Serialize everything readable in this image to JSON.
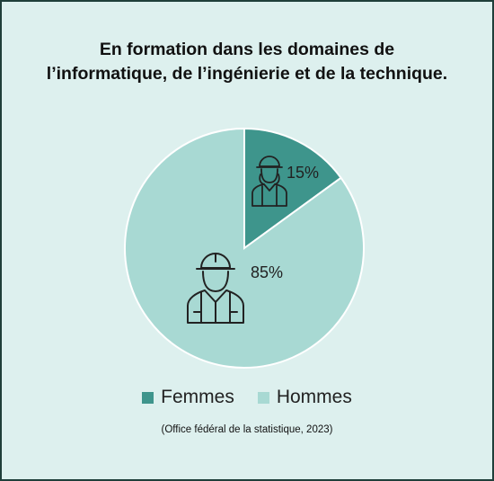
{
  "chart_data": {
    "type": "pie",
    "title": "En formation dans les domaines de l’informatique, de l’ingénierie et de la technique.",
    "slices": [
      {
        "name": "Femmes",
        "value": 15,
        "label": "15%",
        "color": "#3e958c",
        "icon": "female-worker-icon"
      },
      {
        "name": "Hommes",
        "value": 85,
        "label": "85%",
        "color": "#a8d9d3",
        "icon": "male-worker-icon"
      }
    ],
    "legend_position": "bottom",
    "source": "(Office fédéral de la statistique, 2023)"
  },
  "colors": {
    "background": "#ddf0ee",
    "border": "#1f3f3a",
    "icon_stroke": "#222222"
  }
}
